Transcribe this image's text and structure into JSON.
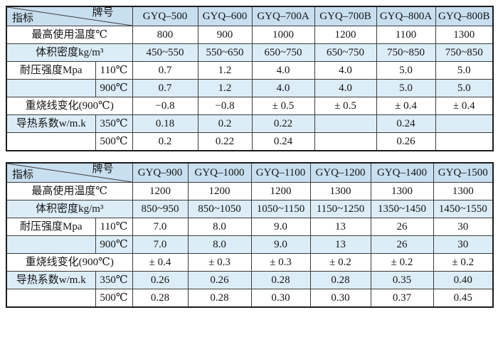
{
  "colors": {
    "page_bg": "#ffffff",
    "header_bg": "#c8dff0",
    "alt_row_bg": "#dcedf8",
    "border": "#3c3c3c",
    "outer_border": "#1b1b1b",
    "text": "#141414"
  },
  "corner": {
    "bottom_left_label": "指标",
    "top_right_label": "牌号"
  },
  "tables": [
    {
      "columns": [
        "GYQ–500",
        "GYQ–600",
        "GYQ–700A",
        "GYQ–700B",
        "GYQ–800A",
        "GYQ–800B"
      ],
      "rows": [
        {
          "label": "最高使用温度℃",
          "sub": null,
          "values": [
            "800",
            "900",
            "1000",
            "1200",
            "1100",
            "1300"
          ]
        },
        {
          "label": "体积密度kg/m³",
          "sub": null,
          "values": [
            "450~550",
            "550~650",
            "650~750",
            "650~750",
            "750~850",
            "750~850"
          ]
        },
        {
          "label": "耐压强度Mpa",
          "sub": "110℃",
          "values": [
            "0.7",
            "1.2",
            "4.0",
            "4.0",
            "5.0",
            "5.0"
          ]
        },
        {
          "label": "",
          "sub": "900℃",
          "values": [
            "0.7",
            "1.2",
            "4.0",
            "4.0",
            "5.0",
            "5.0"
          ]
        },
        {
          "label": "重烧线变化(900℃)",
          "sub": null,
          "values": [
            "−0.8",
            "−0.8",
            "± 0.5",
            "± 0.5",
            "± 0.4",
            "± 0.4"
          ]
        },
        {
          "label": "导热系数w/m.k",
          "sub": "350℃",
          "values": [
            "0.18",
            "0.2",
            "0.22",
            "",
            "0.24",
            ""
          ]
        },
        {
          "label": "",
          "sub": "500℃",
          "values": [
            "0.2",
            "0.22",
            "0.24",
            "",
            "0.26",
            ""
          ]
        }
      ]
    },
    {
      "columns": [
        "GYQ–900",
        "GYQ–1000",
        "GYQ–1100",
        "GYQ–1200",
        "GYQ–1400",
        "GYQ–1500"
      ],
      "rows": [
        {
          "label": "最高使用温度℃",
          "sub": null,
          "values": [
            "1200",
            "1200",
            "1200",
            "1300",
            "1300",
            "1300"
          ]
        },
        {
          "label": "体积密度kg/m³",
          "sub": null,
          "values": [
            "850~950",
            "850~1050",
            "1050~1150",
            "1150~1250",
            "1350~1450",
            "1450~1550"
          ]
        },
        {
          "label": "耐压强度Mpa",
          "sub": "110℃",
          "values": [
            "7.0",
            "8.0",
            "9.0",
            "13",
            "26",
            "30"
          ]
        },
        {
          "label": "",
          "sub": "900℃",
          "values": [
            "7.0",
            "8.0",
            "9.0",
            "13",
            "26",
            "30"
          ]
        },
        {
          "label": "重烧线变化(900℃)",
          "sub": null,
          "values": [
            "± 0.4",
            "± 0.3",
            "± 0.3",
            "± 0.2",
            "± 0.2",
            "± 0.2"
          ]
        },
        {
          "label": "导热系数w/m.k",
          "sub": "350℃",
          "values": [
            "0.26",
            "0.26",
            "0.28",
            "0.28",
            "0.35",
            "0.40"
          ]
        },
        {
          "label": "",
          "sub": "500℃",
          "values": [
            "0.28",
            "0.28",
            "0.30",
            "0.30",
            "0.37",
            "0.45"
          ]
        }
      ]
    }
  ]
}
